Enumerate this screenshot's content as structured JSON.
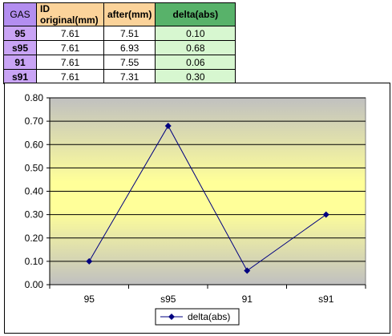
{
  "table": {
    "headers": {
      "gas": "GAS",
      "original": "ID original(mm)",
      "after": "after(mm)",
      "delta": "delta(abs)"
    },
    "rows": [
      {
        "gas": "95",
        "original": "7.61",
        "after": "7.51",
        "delta": "0.10"
      },
      {
        "gas": "s95",
        "original": "7.61",
        "after": "6.93",
        "delta": "0.68"
      },
      {
        "gas": "91",
        "original": "7.61",
        "after": "7.55",
        "delta": "0.06"
      },
      {
        "gas": "s91",
        "original": "7.61",
        "after": "7.31",
        "delta": "0.30"
      }
    ]
  },
  "chart_data": {
    "type": "line",
    "categories": [
      "95",
      "s95",
      "91",
      "s91"
    ],
    "series": [
      {
        "name": "delta(abs)",
        "values": [
          0.1,
          0.68,
          0.06,
          0.3
        ]
      }
    ],
    "ylim": [
      0,
      0.8
    ],
    "yticks": [
      "0.00",
      "0.10",
      "0.20",
      "0.30",
      "0.40",
      "0.50",
      "0.60",
      "0.70",
      "0.80"
    ],
    "grid": true,
    "legend_position": "bottom",
    "colors": {
      "line": "#000080",
      "marker": "#000080",
      "plot_bg_top": "#c0c0c0",
      "plot_bg_middle": "#ffff99"
    }
  }
}
